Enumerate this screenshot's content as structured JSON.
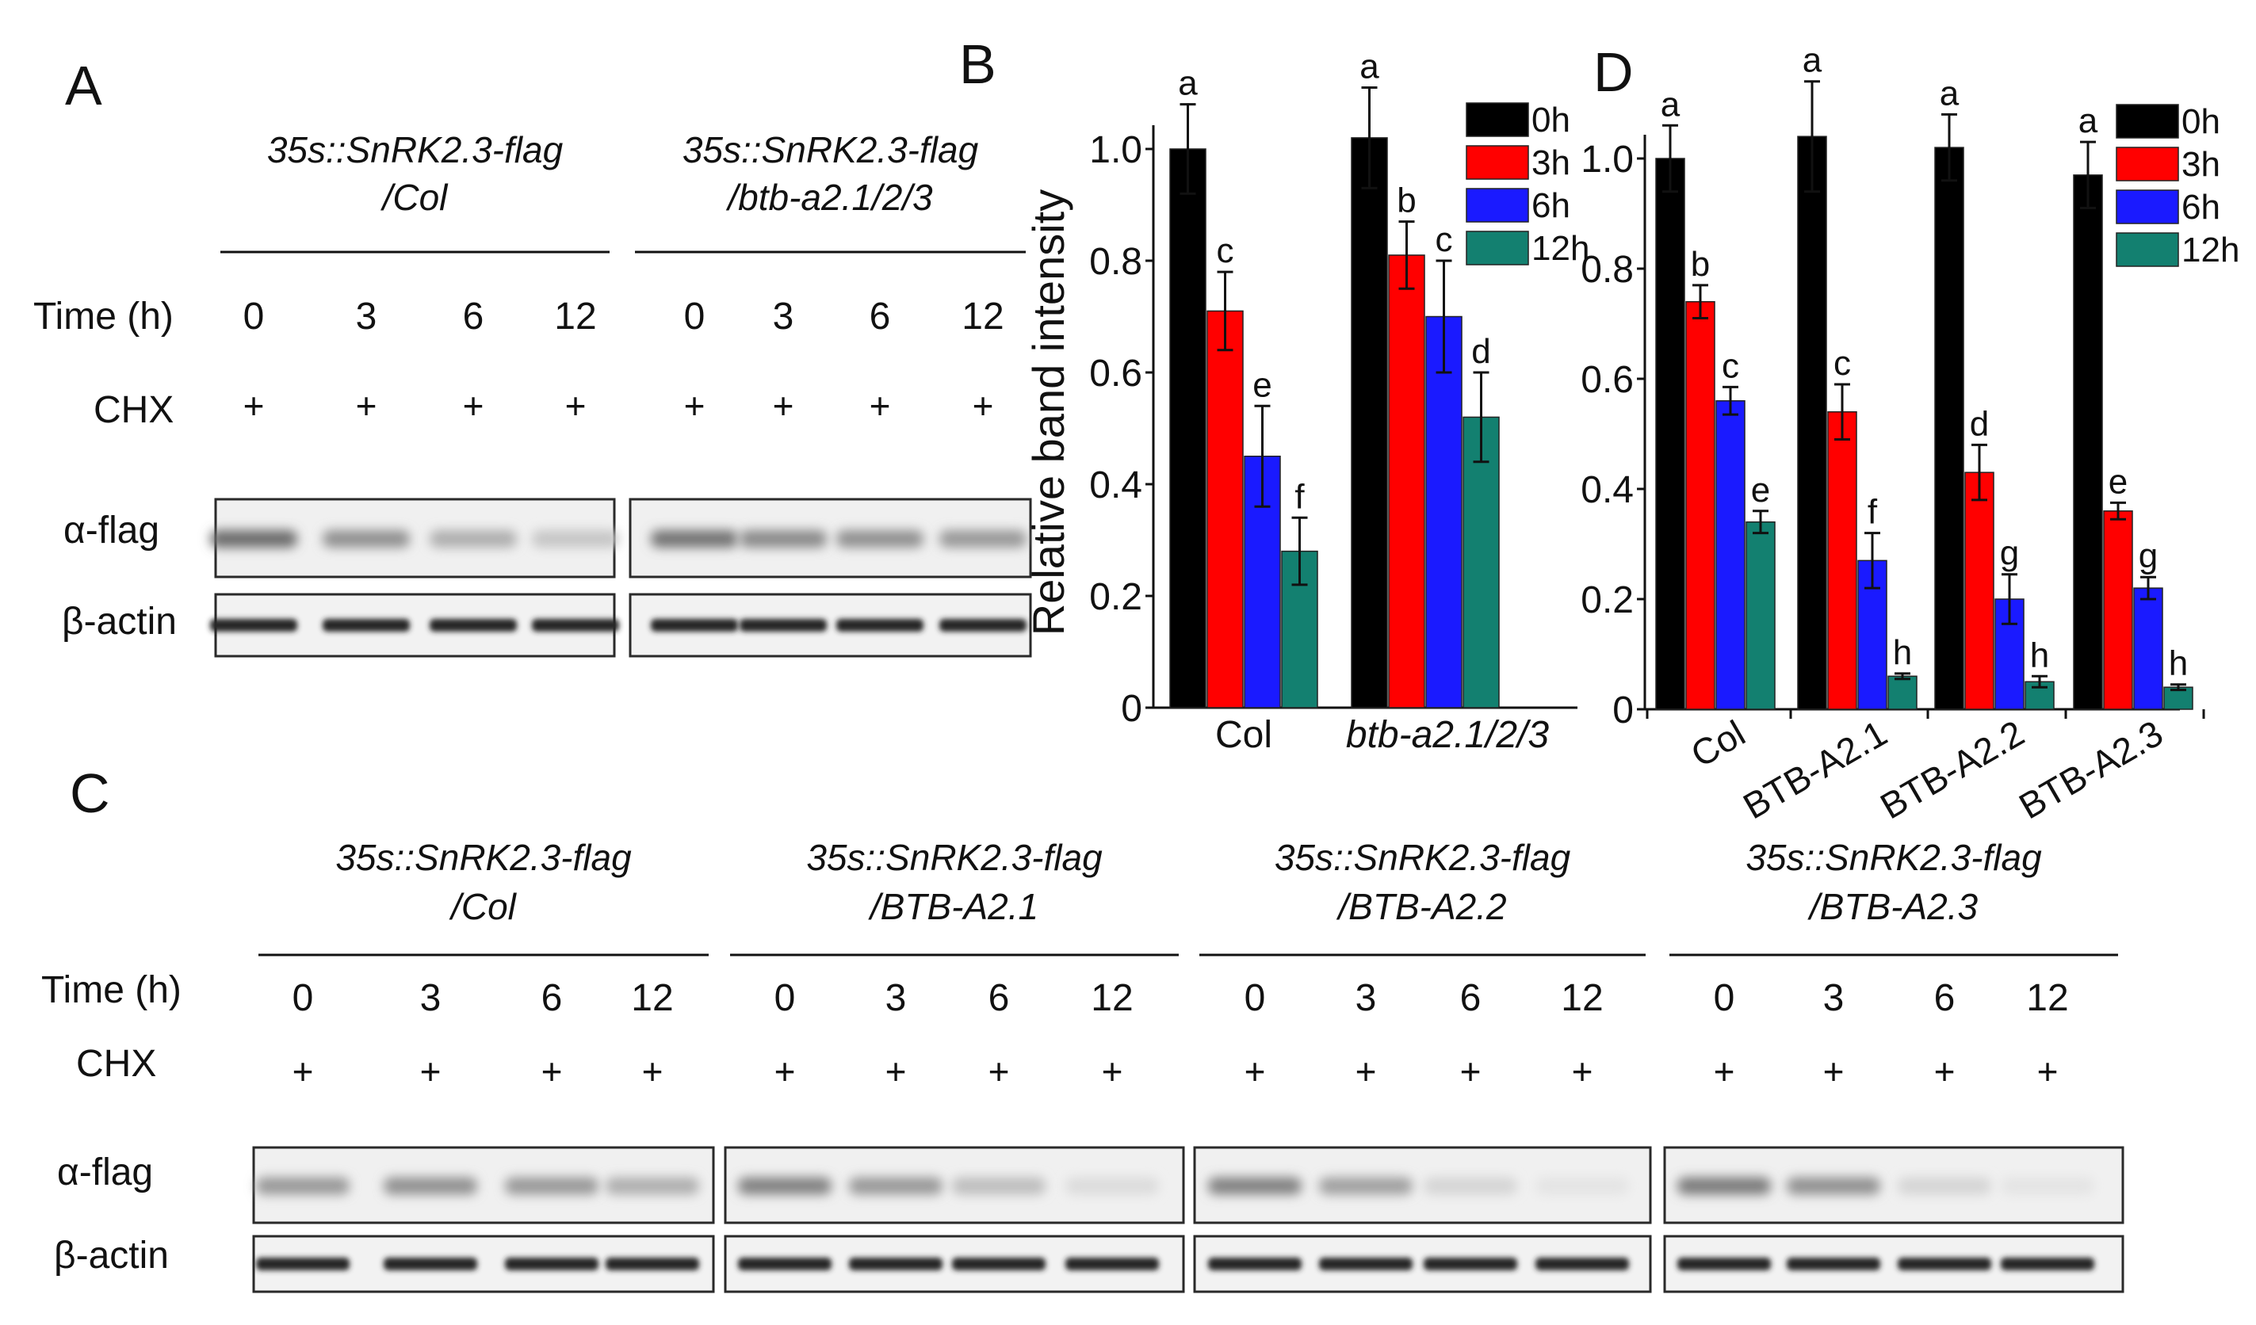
{
  "panel_letters": [
    "A",
    "B",
    "C",
    "D"
  ],
  "row_labels": {
    "time": "Time (h)",
    "chx": "CHX",
    "flag": "α-flag",
    "actin": "β-actin"
  },
  "time_points": [
    "0",
    "3",
    "6",
    "12"
  ],
  "chx_mark": "+",
  "panel_a": {
    "groups": [
      {
        "line1": "35s::SnRK2.3-flag",
        "line2": "/Col",
        "flag_band": [
          0.85,
          0.6,
          0.4,
          0.25
        ]
      },
      {
        "line1": "35s::SnRK2.3-flag",
        "line2": "/btb-a2.1/2/3",
        "flag_band": [
          0.8,
          0.65,
          0.6,
          0.55
        ]
      }
    ]
  },
  "panel_c": {
    "groups": [
      {
        "line1": "35s::SnRK2.3-flag",
        "line2": "/Col",
        "flag_band": [
          0.55,
          0.6,
          0.55,
          0.4
        ]
      },
      {
        "line1": "35s::SnRK2.3-flag",
        "line2": "/BTB-A2.1",
        "flag_band": [
          0.7,
          0.55,
          0.3,
          0.1
        ]
      },
      {
        "line1": "35s::SnRK2.3-flag",
        "line2": "/BTB-A2.2",
        "flag_band": [
          0.7,
          0.5,
          0.15,
          0.05
        ]
      },
      {
        "line1": "35s::SnRK2.3-flag",
        "line2": "/BTB-A2.3",
        "flag_band": [
          0.75,
          0.6,
          0.15,
          0.05
        ]
      }
    ]
  },
  "chart_data": [
    {
      "panel": "B",
      "type": "bar",
      "ylabel": "Relative band intensity",
      "ylim": [
        0,
        1.0
      ],
      "yticks": [
        "0",
        "0.2",
        "0.4",
        "0.6",
        "0.8",
        "1.0"
      ],
      "categories": [
        "Col",
        "btb-a2.1/2/3"
      ],
      "category_italic": [
        false,
        true
      ],
      "legend": "top-right",
      "series": [
        {
          "name": "0h",
          "color": "#000000",
          "values": [
            1.0,
            1.02
          ],
          "errors": [
            0.08,
            0.09
          ],
          "letters": [
            "a",
            "a"
          ]
        },
        {
          "name": "3h",
          "color": "#ff0000",
          "values": [
            0.71,
            0.81
          ],
          "errors": [
            0.07,
            0.06
          ],
          "letters": [
            "c",
            "b"
          ]
        },
        {
          "name": "6h",
          "color": "#1a1aff",
          "values": [
            0.45,
            0.7
          ],
          "errors": [
            0.09,
            0.1
          ],
          "letters": [
            "e",
            "c"
          ]
        },
        {
          "name": "12h",
          "color": "#138070",
          "values": [
            0.28,
            0.52
          ],
          "errors": [
            0.06,
            0.08
          ],
          "letters": [
            "f",
            "d"
          ]
        }
      ]
    },
    {
      "panel": "D",
      "type": "bar",
      "ylabel": "",
      "ylim": [
        0,
        1.0
      ],
      "yticks": [
        "0",
        "0.2",
        "0.4",
        "0.6",
        "0.8",
        "1.0"
      ],
      "categories": [
        "Col",
        "BTB-A2.1",
        "BTB-A2.2",
        "BTB-A2.3"
      ],
      "category_italic": [
        false,
        false,
        false,
        false
      ],
      "legend": "top-right",
      "series": [
        {
          "name": "0h",
          "color": "#000000",
          "values": [
            1.0,
            1.04,
            1.02,
            0.97
          ],
          "errors": [
            0.06,
            0.1,
            0.06,
            0.06
          ],
          "letters": [
            "a",
            "a",
            "a",
            "a"
          ]
        },
        {
          "name": "3h",
          "color": "#ff0000",
          "values": [
            0.74,
            0.54,
            0.43,
            0.36
          ],
          "errors": [
            0.03,
            0.05,
            0.05,
            0.015
          ],
          "letters": [
            "b",
            "c",
            "d",
            "e"
          ]
        },
        {
          "name": "6h",
          "color": "#1a1aff",
          "values": [
            0.56,
            0.27,
            0.2,
            0.22
          ],
          "errors": [
            0.025,
            0.05,
            0.045,
            0.02
          ],
          "letters": [
            "c",
            "f",
            "g",
            "g"
          ]
        },
        {
          "name": "12h",
          "color": "#138070",
          "values": [
            0.34,
            0.06,
            0.05,
            0.04
          ],
          "errors": [
            0.02,
            0.005,
            0.01,
            0.005
          ],
          "letters": [
            "e",
            "h",
            "h",
            "h"
          ]
        }
      ]
    }
  ]
}
